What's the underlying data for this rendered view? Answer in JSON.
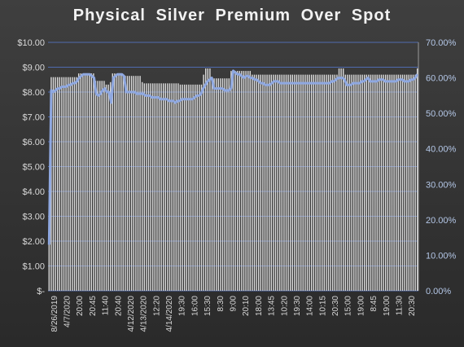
{
  "chart_data": {
    "type": "bar",
    "title": "Physical Silver Premium Over Spot",
    "xlabel": "",
    "ylabel": "",
    "y_left": {
      "min": 0,
      "max": 10,
      "step": 1,
      "tick_labels": [
        "$-",
        "$1.00",
        "$2.00",
        "$3.00",
        "$4.00",
        "$5.00",
        "$6.00",
        "$7.00",
        "$8.00",
        "$9.00",
        "$10.00"
      ]
    },
    "y_right": {
      "min": 0,
      "max": 0.7,
      "step": 0.1,
      "tick_labels": [
        "0.00%",
        "10.00%",
        "20.00%",
        "30.00%",
        "40.00%",
        "50.00%",
        "60.00%",
        "70.00%"
      ]
    },
    "x_tick_labels": [
      "8/26/2019",
      "4/7/2020",
      "20:00",
      "20:45",
      "11:40",
      "20:40",
      "4/12/2020",
      "4/13/2020",
      "12:20",
      "4/14/2020",
      "19:30",
      "16:00",
      "15:30",
      "8:30",
      "9:00",
      "20:10",
      "18:00",
      "13:45",
      "10:20",
      "19:30",
      "14:00",
      "10:15",
      "20:30",
      "15:00",
      "19:00",
      "8:45",
      "19:00",
      "11:30",
      "20:30"
    ],
    "series": [
      {
        "name": "",
        "kind": "bar",
        "axis": "left",
        "color": "#d9d9d9",
        "values": [
          1.9,
          8.6,
          8.6,
          8.6,
          8.6,
          8.6,
          8.6,
          8.6,
          8.6,
          8.6,
          8.6,
          8.6,
          8.6,
          8.6,
          8.75,
          8.75,
          8.75,
          8.75,
          8.75,
          8.75,
          8.75,
          8.75,
          8.45,
          8.45,
          8.45,
          8.45,
          8.45,
          8.3,
          8.3,
          8.4,
          8.75,
          8.75,
          8.75,
          8.75,
          8.75,
          8.65,
          8.65,
          8.65,
          8.65,
          8.65,
          8.65,
          8.65,
          8.65,
          8.65,
          8.4,
          8.35,
          8.35,
          8.35,
          8.35,
          8.35,
          8.35,
          8.35,
          8.35,
          8.35,
          8.35,
          8.35,
          8.35,
          8.35,
          8.35,
          8.35,
          8.35,
          8.35,
          8.3,
          8.3,
          8.3,
          8.3,
          8.3,
          8.3,
          8.3,
          8.3,
          8.3,
          8.3,
          8.3,
          8.7,
          8.95,
          8.95,
          8.95,
          8.55,
          8.55,
          8.55,
          8.55,
          8.55,
          8.55,
          8.55,
          8.55,
          8.55,
          8.85,
          8.85,
          8.85,
          8.85,
          8.85,
          8.85,
          8.85,
          8.85,
          8.85,
          8.85,
          8.7,
          8.7,
          8.7,
          8.7,
          8.7,
          8.7,
          8.7,
          8.7,
          8.7,
          8.7,
          8.7,
          8.7,
          8.7,
          8.7,
          8.7,
          8.7,
          8.7,
          8.7,
          8.7,
          8.7,
          8.7,
          8.7,
          8.7,
          8.7,
          8.7,
          8.7,
          8.7,
          8.7,
          8.7,
          8.7,
          8.7,
          8.7,
          8.7,
          8.7,
          8.7,
          8.7,
          8.7,
          8.7,
          8.7,
          8.7,
          8.7,
          8.95,
          8.95,
          8.95,
          8.7,
          8.7,
          8.7,
          8.7,
          8.7,
          8.7,
          8.7,
          8.7,
          8.7,
          8.7,
          8.7,
          8.7,
          8.7,
          8.7,
          8.7,
          8.7,
          8.7,
          8.7,
          8.7,
          8.7,
          8.7,
          8.7,
          8.7,
          8.7,
          8.7,
          8.7,
          8.7,
          8.7,
          8.7,
          8.7,
          8.7,
          8.7,
          8.7,
          8.7,
          8.95
        ]
      },
      {
        "name": "",
        "kind": "line",
        "axis": "right",
        "color": "#8fa8e0",
        "values": [
          0.13,
          0.565,
          0.56,
          0.565,
          0.57,
          0.57,
          0.575,
          0.575,
          0.575,
          0.58,
          0.58,
          0.585,
          0.585,
          0.59,
          0.6,
          0.605,
          0.61,
          0.61,
          0.61,
          0.61,
          0.605,
          0.6,
          0.555,
          0.55,
          0.555,
          0.565,
          0.57,
          0.56,
          0.56,
          0.53,
          0.6,
          0.605,
          0.61,
          0.61,
          0.61,
          0.605,
          0.56,
          0.56,
          0.56,
          0.56,
          0.56,
          0.555,
          0.555,
          0.555,
          0.555,
          0.55,
          0.55,
          0.55,
          0.545,
          0.545,
          0.545,
          0.545,
          0.54,
          0.54,
          0.54,
          0.54,
          0.535,
          0.535,
          0.535,
          0.53,
          0.535,
          0.535,
          0.54,
          0.54,
          0.54,
          0.54,
          0.54,
          0.54,
          0.545,
          0.55,
          0.55,
          0.555,
          0.57,
          0.58,
          0.59,
          0.595,
          0.6,
          0.57,
          0.57,
          0.57,
          0.57,
          0.57,
          0.565,
          0.565,
          0.565,
          0.57,
          0.62,
          0.615,
          0.61,
          0.61,
          0.605,
          0.6,
          0.605,
          0.605,
          0.6,
          0.6,
          0.595,
          0.595,
          0.59,
          0.585,
          0.585,
          0.58,
          0.58,
          0.58,
          0.585,
          0.59,
          0.59,
          0.59,
          0.585,
          0.585,
          0.585,
          0.585,
          0.585,
          0.585,
          0.585,
          0.585,
          0.585,
          0.585,
          0.585,
          0.585,
          0.585,
          0.585,
          0.585,
          0.585,
          0.585,
          0.585,
          0.585,
          0.585,
          0.585,
          0.585,
          0.585,
          0.585,
          0.59,
          0.59,
          0.595,
          0.6,
          0.6,
          0.6,
          0.595,
          0.58,
          0.58,
          0.58,
          0.585,
          0.585,
          0.585,
          0.585,
          0.59,
          0.59,
          0.595,
          0.6,
          0.59,
          0.59,
          0.59,
          0.59,
          0.595,
          0.595,
          0.595,
          0.59,
          0.59,
          0.59,
          0.59,
          0.59,
          0.59,
          0.595,
          0.595,
          0.595,
          0.59,
          0.59,
          0.59,
          0.595,
          0.595,
          0.6,
          0.61
        ]
      }
    ],
    "grid": true,
    "legend": "none"
  },
  "colors": {
    "background": "#333333",
    "bars": "#d9d9d9",
    "line": "#8fa8e0",
    "gridline": "#4f6bb0",
    "right_axis_text": "#b4c7e7",
    "left_axis_text": "#d9d9d9"
  }
}
